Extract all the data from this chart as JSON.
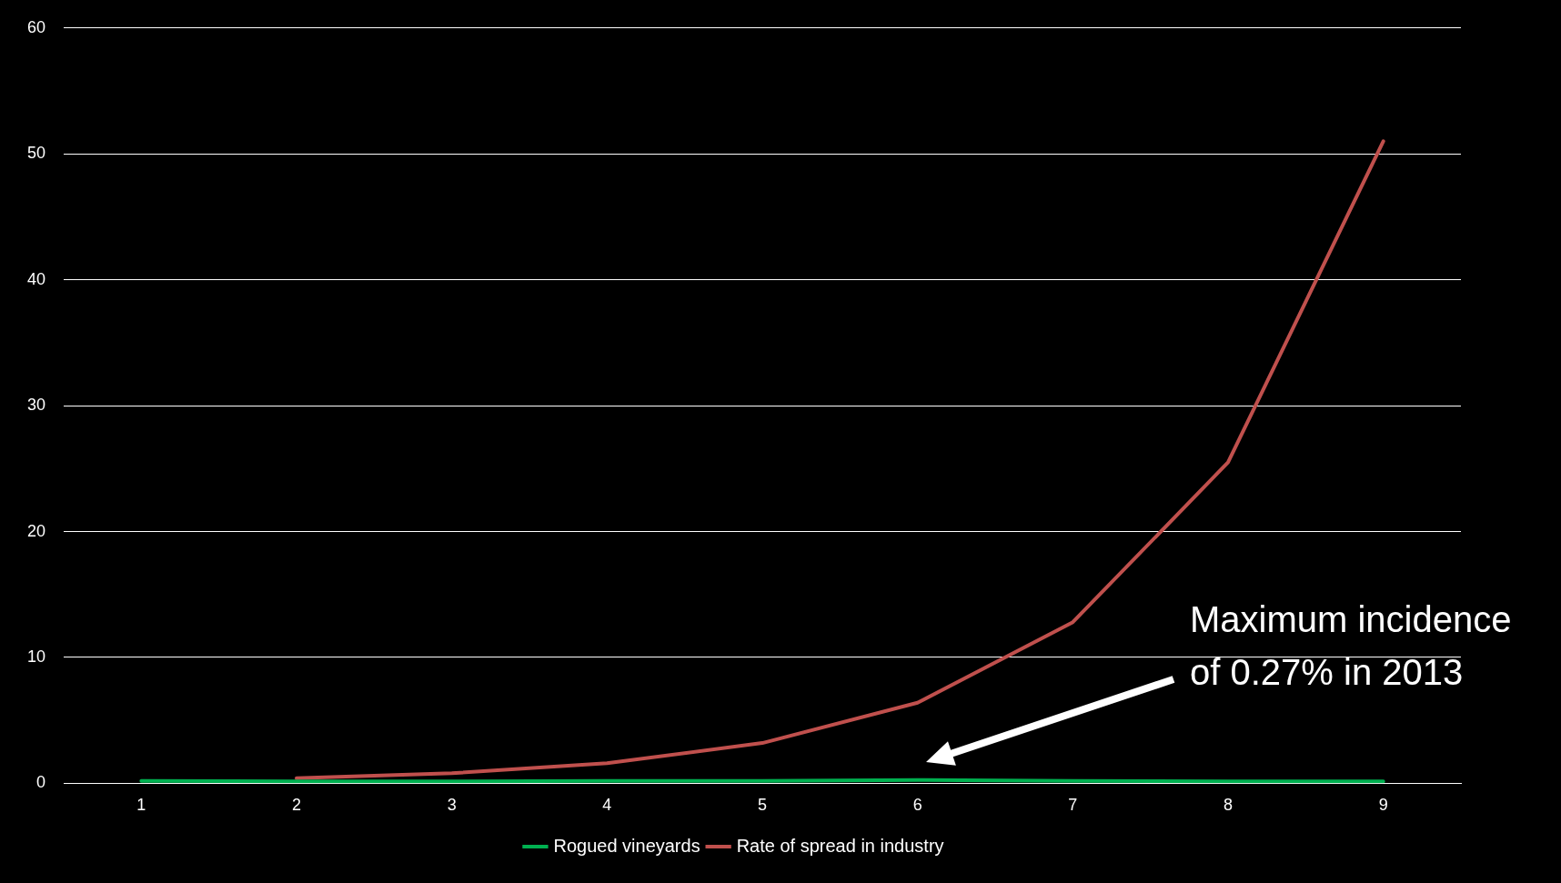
{
  "chart_data": {
    "type": "line",
    "categories": [
      "1",
      "2",
      "3",
      "4",
      "5",
      "6",
      "7",
      "8",
      "9"
    ],
    "series": [
      {
        "name": "Rogued vineyards",
        "color": "#00b050",
        "values": [
          0.2,
          0.15,
          0.15,
          0.2,
          0.2,
          0.27,
          0.2,
          0.15,
          0.15
        ]
      },
      {
        "name": "Rate of spread in industry",
        "color": "#c0504d",
        "values": [
          null,
          0.4,
          0.8,
          1.6,
          3.2,
          6.4,
          12.8,
          25.5,
          51
        ]
      }
    ],
    "ylim": [
      0,
      60
    ],
    "yticks": [
      0,
      10,
      20,
      30,
      40,
      50,
      60
    ],
    "grid": "y",
    "legend": "bottom",
    "marker": "none",
    "line_style": "solid",
    "annotations": [
      "Maximum incidence of 0.27% in 2013"
    ]
  }
}
